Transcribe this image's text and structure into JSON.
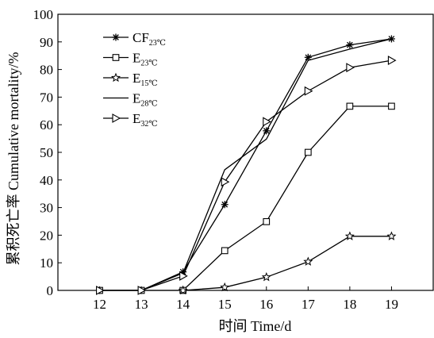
{
  "chart_data": {
    "type": "line",
    "xlabel": "时间 Time/d",
    "ylabel": "累积死亡率 Cumulative mortality/%",
    "xlim": [
      11,
      20
    ],
    "ylim": [
      0,
      100
    ],
    "xticks": [
      "12",
      "13",
      "14",
      "15",
      "16",
      "17",
      "18",
      "19"
    ],
    "yticks": [
      "0",
      "10",
      "20",
      "30",
      "40",
      "50",
      "60",
      "70",
      "80",
      "90",
      "100"
    ],
    "legend_position": "top-left",
    "grid": false,
    "series": [
      {
        "name": "CF23℃",
        "name_main": "CF",
        "name_sub": "23℃",
        "marker": "asterisk",
        "x": [
          12,
          13,
          14,
          15,
          16,
          17,
          18,
          19
        ],
        "values": [
          0,
          0,
          6.7,
          31.1,
          57.8,
          84.4,
          88.9,
          91.1
        ]
      },
      {
        "name": "E23℃",
        "name_main": "E",
        "name_sub": "23℃",
        "marker": "square",
        "x": [
          12,
          13,
          14,
          15,
          16,
          17,
          18,
          19
        ],
        "values": [
          0,
          0,
          0,
          14.4,
          24.9,
          50,
          66.7,
          66.7
        ]
      },
      {
        "name": "E15℃",
        "name_main": "E",
        "name_sub": "15℃",
        "marker": "star",
        "x": [
          14,
          15,
          16,
          17,
          18,
          19
        ],
        "values": [
          0,
          1.1,
          4.8,
          10.4,
          19.6,
          19.6
        ]
      },
      {
        "name": "E28℃",
        "name_main": "E",
        "name_sub": "28℃",
        "marker": "none",
        "x": [
          12,
          13,
          14,
          15,
          16,
          17,
          18,
          19
        ],
        "values": [
          0,
          0,
          6.3,
          43.7,
          54.8,
          83.3,
          87.4,
          91.1
        ]
      },
      {
        "name": "E32℃",
        "name_main": "E",
        "name_sub": "32℃",
        "marker": "triangle-right",
        "x": [
          12,
          13,
          14,
          15,
          16,
          17,
          18,
          19
        ],
        "values": [
          0,
          0,
          5.2,
          39.3,
          61.1,
          72.2,
          80.7,
          83.3
        ]
      }
    ]
  }
}
